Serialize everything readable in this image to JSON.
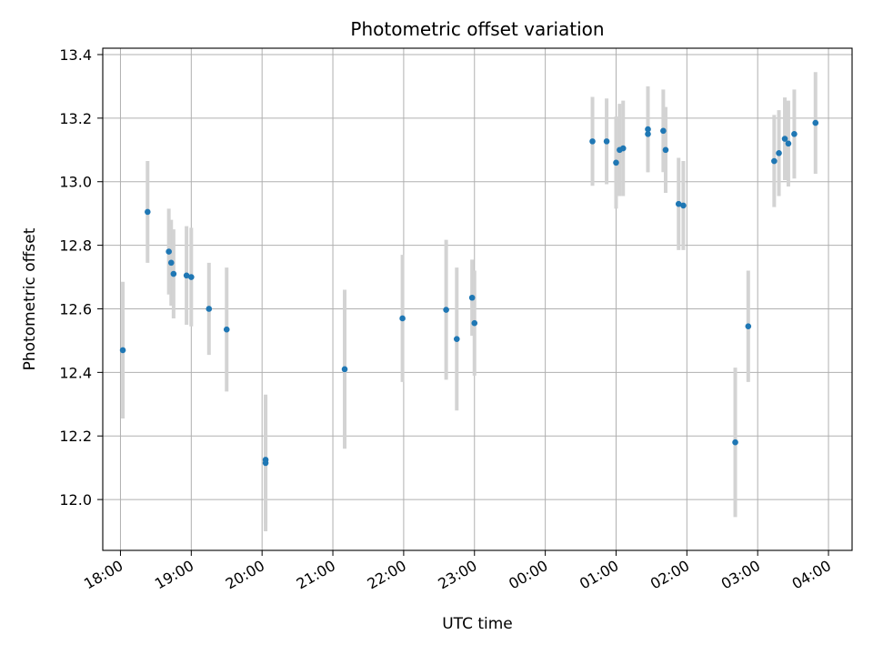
{
  "chart_data": {
    "type": "scatter",
    "title": "Photometric offset variation",
    "xlabel": "UTC time",
    "ylabel": "Photometric offset",
    "x_axis_kind": "time",
    "x_start_date": "",
    "xlim": [
      "17:45",
      "04:20"
    ],
    "ylim": [
      11.84,
      13.42
    ],
    "x_ticks": [
      "18:00",
      "19:00",
      "20:00",
      "21:00",
      "22:00",
      "23:00",
      "00:00",
      "01:00",
      "02:00",
      "03:00",
      "04:00"
    ],
    "y_ticks": [
      12.0,
      12.2,
      12.4,
      12.6,
      12.8,
      13.0,
      13.2,
      13.4
    ],
    "y_tick_labels": [
      "12.0",
      "12.2",
      "12.4",
      "12.6",
      "12.8",
      "13.0",
      "13.2",
      "13.4"
    ],
    "grid": true,
    "marker_color": "#1f77b4",
    "errorbar_color": "#d3d3d3",
    "points": [
      {
        "x": "18:02",
        "y": 12.47,
        "err": 0.215
      },
      {
        "x": "18:23",
        "y": 12.905,
        "err": 0.16
      },
      {
        "x": "18:41",
        "y": 12.78,
        "err": 0.135
      },
      {
        "x": "18:43",
        "y": 12.745,
        "err": 0.135
      },
      {
        "x": "18:45",
        "y": 12.71,
        "err": 0.14
      },
      {
        "x": "18:56",
        "y": 12.705,
        "err": 0.155
      },
      {
        "x": "19:00",
        "y": 12.7,
        "err": 0.155
      },
      {
        "x": "19:15",
        "y": 12.6,
        "err": 0.145
      },
      {
        "x": "19:30",
        "y": 12.535,
        "err": 0.195
      },
      {
        "x": "20:03",
        "y": 12.115,
        "err": 0.215
      },
      {
        "x": "20:03",
        "y": 12.125,
        "err": 0.2
      },
      {
        "x": "21:10",
        "y": 12.41,
        "err": 0.25
      },
      {
        "x": "21:59",
        "y": 12.57,
        "err": 0.2
      },
      {
        "x": "22:36",
        "y": 12.597,
        "err": 0.22
      },
      {
        "x": "22:45",
        "y": 12.505,
        "err": 0.225
      },
      {
        "x": "22:58",
        "y": 12.635,
        "err": 0.12
      },
      {
        "x": "23:00",
        "y": 12.555,
        "err": 0.165
      },
      {
        "x": "00:40",
        "y": 13.127,
        "err": 0.14
      },
      {
        "x": "00:52",
        "y": 13.127,
        "err": 0.135
      },
      {
        "x": "01:00",
        "y": 13.06,
        "err": 0.145
      },
      {
        "x": "01:03",
        "y": 13.1,
        "err": 0.145
      },
      {
        "x": "01:06",
        "y": 13.105,
        "err": 0.15
      },
      {
        "x": "01:27",
        "y": 13.165,
        "err": 0.135
      },
      {
        "x": "01:27",
        "y": 13.15,
        "err": 0.12
      },
      {
        "x": "01:40",
        "y": 13.16,
        "err": 0.13
      },
      {
        "x": "01:42",
        "y": 13.1,
        "err": 0.135
      },
      {
        "x": "01:53",
        "y": 12.93,
        "err": 0.145
      },
      {
        "x": "01:57",
        "y": 12.925,
        "err": 0.14
      },
      {
        "x": "02:41",
        "y": 12.18,
        "err": 0.235
      },
      {
        "x": "02:52",
        "y": 12.545,
        "err": 0.175
      },
      {
        "x": "03:14",
        "y": 13.065,
        "err": 0.145
      },
      {
        "x": "03:18",
        "y": 13.09,
        "err": 0.135
      },
      {
        "x": "03:23",
        "y": 13.135,
        "err": 0.13
      },
      {
        "x": "03:26",
        "y": 13.12,
        "err": 0.135
      },
      {
        "x": "03:31",
        "y": 13.15,
        "err": 0.14
      },
      {
        "x": "03:49",
        "y": 13.185,
        "err": 0.16
      }
    ]
  }
}
